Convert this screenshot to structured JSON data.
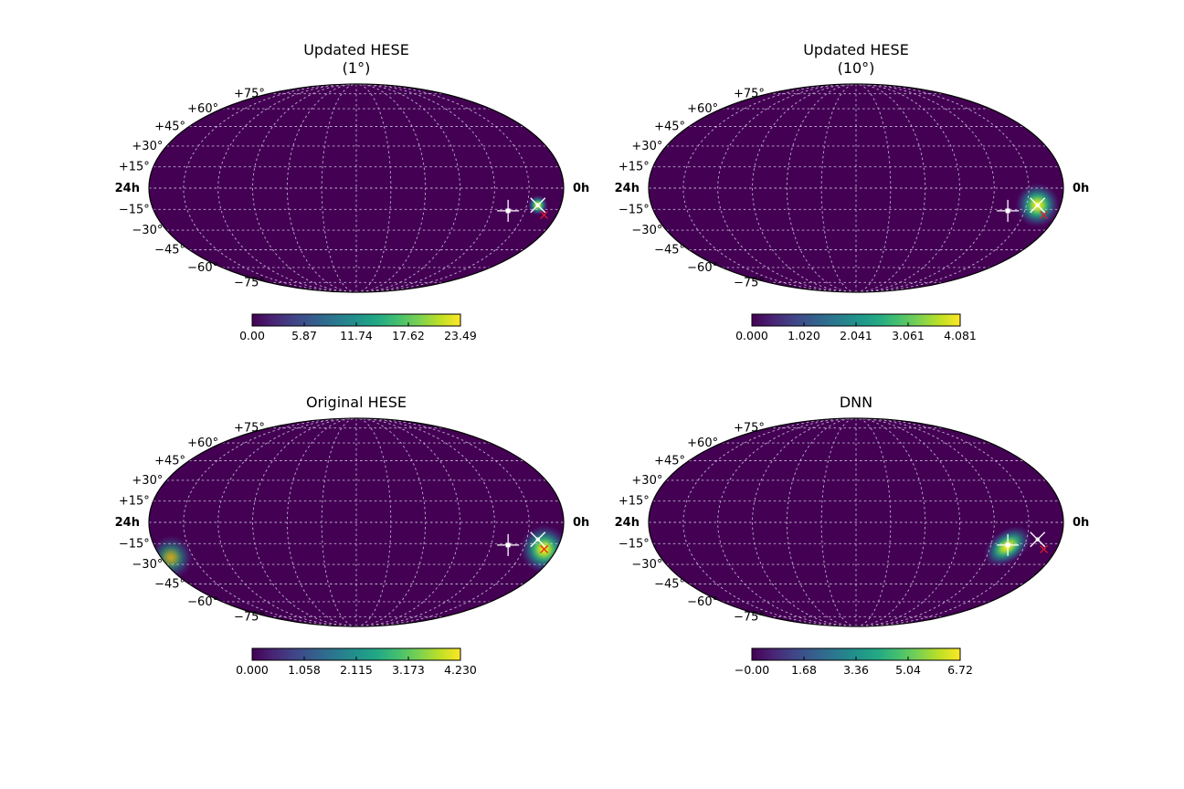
{
  "figure": {
    "colors": {
      "background": "#440154",
      "grid": "#d9d2e6",
      "outline": "#000000",
      "marker_white": "#ffffff",
      "marker_red": "#e8192c"
    },
    "colormap": "viridis"
  },
  "chart_data": [
    {
      "type": "heatmap",
      "projection": "mollweide",
      "title_lines": [
        "Updated HESE",
        "(1°)"
      ],
      "dec_labels": [
        "+75°",
        "+60°",
        "+45°",
        "+30°",
        "+15°",
        "−15°",
        "−30°",
        "−45°",
        "−60°",
        "−75°"
      ],
      "ra_left_label": "24h",
      "ra_right_label": "0h",
      "grid": true,
      "colorbar": {
        "ticks": [
          "0.00",
          "5.87",
          "11.74",
          "17.62",
          "23.49"
        ],
        "range": [
          0,
          23.49
        ]
      },
      "hotspots": [
        {
          "ra_hours": 1.35,
          "dec_deg": -12,
          "sigma_deg": 4.5,
          "peak": 1.0
        }
      ],
      "markers": [
        {
          "kind": "white-cross",
          "ra_hours": 3.0,
          "dec_deg": -16
        },
        {
          "kind": "white-x",
          "ra_hours": 1.35,
          "dec_deg": -12
        },
        {
          "kind": "red-x",
          "ra_hours": 0.75,
          "dec_deg": -19
        }
      ]
    },
    {
      "type": "heatmap",
      "projection": "mollweide",
      "title_lines": [
        "Updated HESE",
        "(10°)"
      ],
      "dec_labels": [
        "+75°",
        "+60°",
        "+45°",
        "+30°",
        "+15°",
        "−15°",
        "−30°",
        "−45°",
        "−60°",
        "−75°"
      ],
      "ra_left_label": "24h",
      "ra_right_label": "0h",
      "grid": true,
      "colorbar": {
        "ticks": [
          "0.000",
          "1.020",
          "2.041",
          "3.061",
          "4.081"
        ],
        "range": [
          0,
          4.081
        ]
      },
      "hotspots": [
        {
          "ra_hours": 1.35,
          "dec_deg": -12,
          "sigma_deg": 10,
          "peak": 1.0
        }
      ],
      "markers": [
        {
          "kind": "white-cross",
          "ra_hours": 3.0,
          "dec_deg": -16
        },
        {
          "kind": "white-x",
          "ra_hours": 1.35,
          "dec_deg": -12
        },
        {
          "kind": "red-x",
          "ra_hours": 0.75,
          "dec_deg": -19
        }
      ]
    },
    {
      "type": "heatmap",
      "projection": "mollweide",
      "title_lines": [
        "Original HESE"
      ],
      "dec_labels": [
        "+75°",
        "+60°",
        "+45°",
        "+30°",
        "+15°",
        "−15°",
        "−30°",
        "−45°",
        "−60°",
        "−75°"
      ],
      "ra_left_label": "24h",
      "ra_right_label": "0h",
      "grid": true,
      "colorbar": {
        "ticks": [
          "0.000",
          "1.058",
          "2.115",
          "3.173",
          "4.230"
        ],
        "range": [
          0,
          4.23
        ]
      },
      "hotspots": [
        {
          "ra_hours": 0.75,
          "dec_deg": -19,
          "sigma_deg": 11,
          "peak": 1.0
        },
        {
          "ra_hours": 23.4,
          "dec_deg": -25,
          "sigma_deg": 10,
          "peak": 0.7
        }
      ],
      "markers": [
        {
          "kind": "white-cross",
          "ra_hours": 3.0,
          "dec_deg": -16
        },
        {
          "kind": "white-x",
          "ra_hours": 1.35,
          "dec_deg": -12
        },
        {
          "kind": "red-x",
          "ra_hours": 0.75,
          "dec_deg": -19
        }
      ]
    },
    {
      "type": "heatmap",
      "projection": "mollweide",
      "title_lines": [
        "DNN"
      ],
      "dec_labels": [
        "+75°",
        "+60°",
        "+45°",
        "+30°",
        "+15°",
        "−15°",
        "−30°",
        "−45°",
        "−60°",
        "−75°"
      ],
      "ra_left_label": "24h",
      "ra_right_label": "0h",
      "grid": true,
      "colorbar": {
        "ticks": [
          "−0.00",
          "1.68",
          "3.36",
          "5.04",
          "6.72"
        ],
        "range": [
          0,
          6.72
        ]
      },
      "hotspots": [
        {
          "ra_hours": 3.0,
          "dec_deg": -17,
          "sigma_deg": 7.5,
          "peak": 1.0,
          "elongation": 1.6
        }
      ],
      "markers": [
        {
          "kind": "white-cross",
          "ra_hours": 3.0,
          "dec_deg": -16
        },
        {
          "kind": "white-x",
          "ra_hours": 1.35,
          "dec_deg": -12
        },
        {
          "kind": "red-x",
          "ra_hours": 0.75,
          "dec_deg": -19
        }
      ]
    }
  ]
}
